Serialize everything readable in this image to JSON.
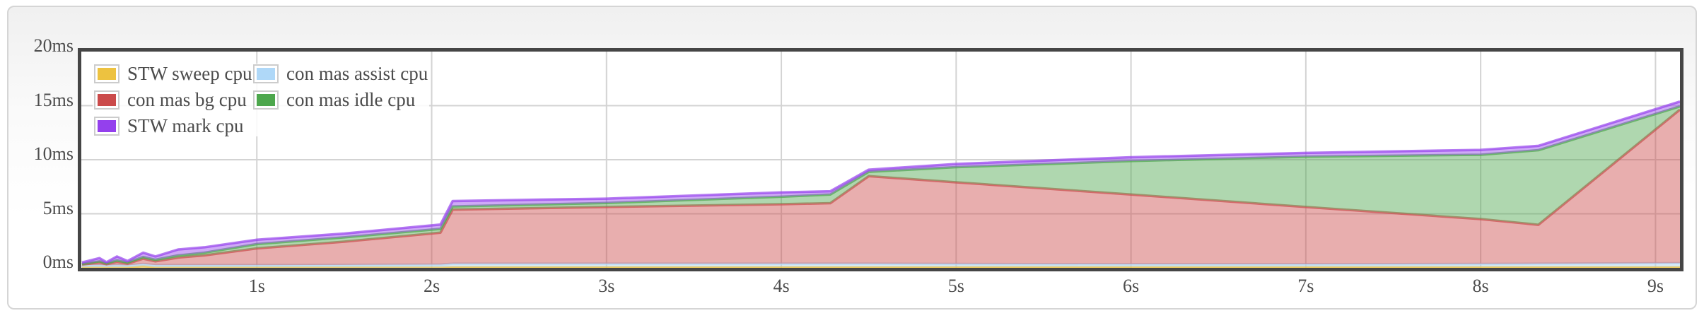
{
  "window": {
    "description": "GC trace visualization panel showing garbage collector CPU time per phase"
  },
  "colors": {
    "plot_border": "#454545",
    "panel_border": "#d5d5d5",
    "panel_background_top": "#f0f0f0",
    "plot_background": "#ffffff",
    "gridline": "#d3d3d3",
    "tick_text": "#4c4c4c",
    "legend_box_border": "#cccccc",
    "fill_opacity": 0.45
  },
  "chart_data": {
    "type": "area",
    "stacked": true,
    "title": "",
    "xlabel": "",
    "ylabel": "",
    "xlim": [
      0,
      9.14
    ],
    "ylim": [
      0,
      20
    ],
    "grid": true,
    "legend_position": "top-left",
    "legend_columns": 2,
    "x_unit": "s",
    "y_unit": "ms",
    "x": [
      0,
      0.1,
      0.14,
      0.2,
      0.26,
      0.35,
      0.42,
      0.55,
      0.7,
      1.0,
      1.5,
      2.05,
      2.12,
      3.0,
      4.0,
      4.28,
      4.5,
      5.0,
      6.0,
      7.0,
      8.0,
      8.33,
      9.14
    ],
    "series": [
      {
        "name": "STW sweep cpu",
        "color": "#edc240",
        "values": [
          0.05,
          0.05,
          0.05,
          0.05,
          0.05,
          0.15,
          0.05,
          0.05,
          0.05,
          0.05,
          0.05,
          0.05,
          0.08,
          0.08,
          0.08,
          0.08,
          0.08,
          0.08,
          0.08,
          0.08,
          0.08,
          0.08,
          0.08
        ]
      },
      {
        "name": "con mas assist cpu",
        "color": "#afd8f8",
        "values": [
          0.2,
          0.2,
          0.18,
          0.2,
          0.18,
          0.2,
          0.2,
          0.2,
          0.2,
          0.2,
          0.22,
          0.25,
          0.3,
          0.3,
          0.3,
          0.3,
          0.3,
          0.28,
          0.25,
          0.25,
          0.28,
          0.3,
          0.35
        ]
      },
      {
        "name": "con mas bg cpu",
        "color": "#cb4b4b",
        "values": [
          0.05,
          0.25,
          0.1,
          0.3,
          0.15,
          0.5,
          0.35,
          0.7,
          0.9,
          1.55,
          2.15,
          2.95,
          5.0,
          5.25,
          5.5,
          5.6,
          8.1,
          7.55,
          6.45,
          5.3,
          4.15,
          3.6,
          14.2
        ]
      },
      {
        "name": "con mas idle cpu",
        "color": "#4da74d",
        "values": [
          0.05,
          0.1,
          0.07,
          0.15,
          0.1,
          0.15,
          0.15,
          0.2,
          0.25,
          0.4,
          0.4,
          0.35,
          0.3,
          0.37,
          0.7,
          0.8,
          0.4,
          1.4,
          3.1,
          4.65,
          5.95,
          6.9,
          0.3
        ]
      },
      {
        "name": "STW mark cpu",
        "color": "#9440ed",
        "values": [
          0.15,
          0.3,
          0.12,
          0.35,
          0.15,
          0.4,
          0.3,
          0.55,
          0.5,
          0.4,
          0.35,
          0.4,
          0.5,
          0.4,
          0.4,
          0.3,
          0.2,
          0.3,
          0.35,
          0.35,
          0.45,
          0.4,
          0.45
        ]
      }
    ],
    "x_ticks": [
      {
        "value": 1,
        "label": "1s"
      },
      {
        "value": 2,
        "label": "2s"
      },
      {
        "value": 3,
        "label": "3s"
      },
      {
        "value": 4,
        "label": "4s"
      },
      {
        "value": 5,
        "label": "5s"
      },
      {
        "value": 6,
        "label": "6s"
      },
      {
        "value": 7,
        "label": "7s"
      },
      {
        "value": 8,
        "label": "8s"
      },
      {
        "value": 9,
        "label": "9s"
      }
    ],
    "y_ticks": [
      {
        "value": 0,
        "label": "0ms"
      },
      {
        "value": 5,
        "label": "5ms"
      },
      {
        "value": 10,
        "label": "10ms"
      },
      {
        "value": 15,
        "label": "15ms"
      },
      {
        "value": 20,
        "label": "20ms"
      }
    ]
  },
  "legend": {
    "items": [
      {
        "label": "STW sweep cpu",
        "color": "#edc240"
      },
      {
        "label": "con mas assist cpu",
        "color": "#afd8f8"
      },
      {
        "label": "con mas bg cpu",
        "color": "#cb4b4b"
      },
      {
        "label": "con mas idle cpu",
        "color": "#4da74d"
      },
      {
        "label": "STW mark cpu",
        "color": "#9440ed"
      }
    ]
  }
}
